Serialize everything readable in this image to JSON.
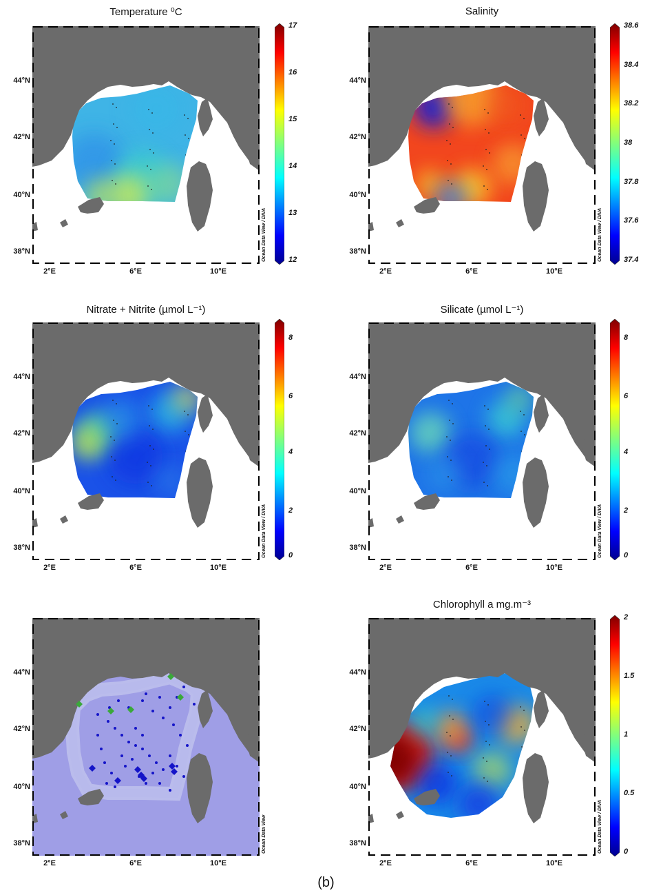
{
  "panels": [
    {
      "title": "Temperature ⁰C",
      "palette": "jet",
      "ticks": [
        "17",
        "16",
        "15",
        "14",
        "13",
        "12"
      ],
      "credit": "Ocean Data View / DIVA"
    },
    {
      "title": "Salinity",
      "palette": "jet",
      "ticks": [
        "38.6",
        "38.4",
        "38.2",
        "38",
        "37.8",
        "37.6",
        "37.4"
      ],
      "credit": "Ocean Data View / DIVA"
    },
    {
      "title": "Nitrate + Nitrite (µmol L⁻¹)",
      "palette": "jet",
      "ticks": [
        "8",
        "6",
        "4",
        "2",
        "0"
      ],
      "credit": "Ocean Data View / DIVA"
    },
    {
      "title": "Silicate (µmol L⁻¹)",
      "palette": "jet",
      "ticks": [
        "8",
        "6",
        "4",
        "2",
        "0"
      ],
      "credit": "Ocean Data View / DIVA"
    },
    {
      "title": "",
      "palette": "none",
      "ticks": [],
      "credit": "Ocean Data View"
    },
    {
      "title": "Chlorophyll a mg.m⁻³",
      "palette": "jet",
      "ticks": [
        "2",
        "1.5",
        "1",
        "0.5",
        "0"
      ],
      "credit": "Ocean Data View / DIVA"
    }
  ],
  "lat_labels": [
    "44°N",
    "42°N",
    "40°N",
    "38°N"
  ],
  "lon_labels": [
    "2°E",
    "6°E",
    "10°E"
  ],
  "caption": "(b)",
  "colors": {
    "land": "#6b6b6b",
    "sea": "#ffffff",
    "bathy": "#9f9ee6",
    "station": "#1414c8",
    "station_green": "#3aa83a"
  }
}
